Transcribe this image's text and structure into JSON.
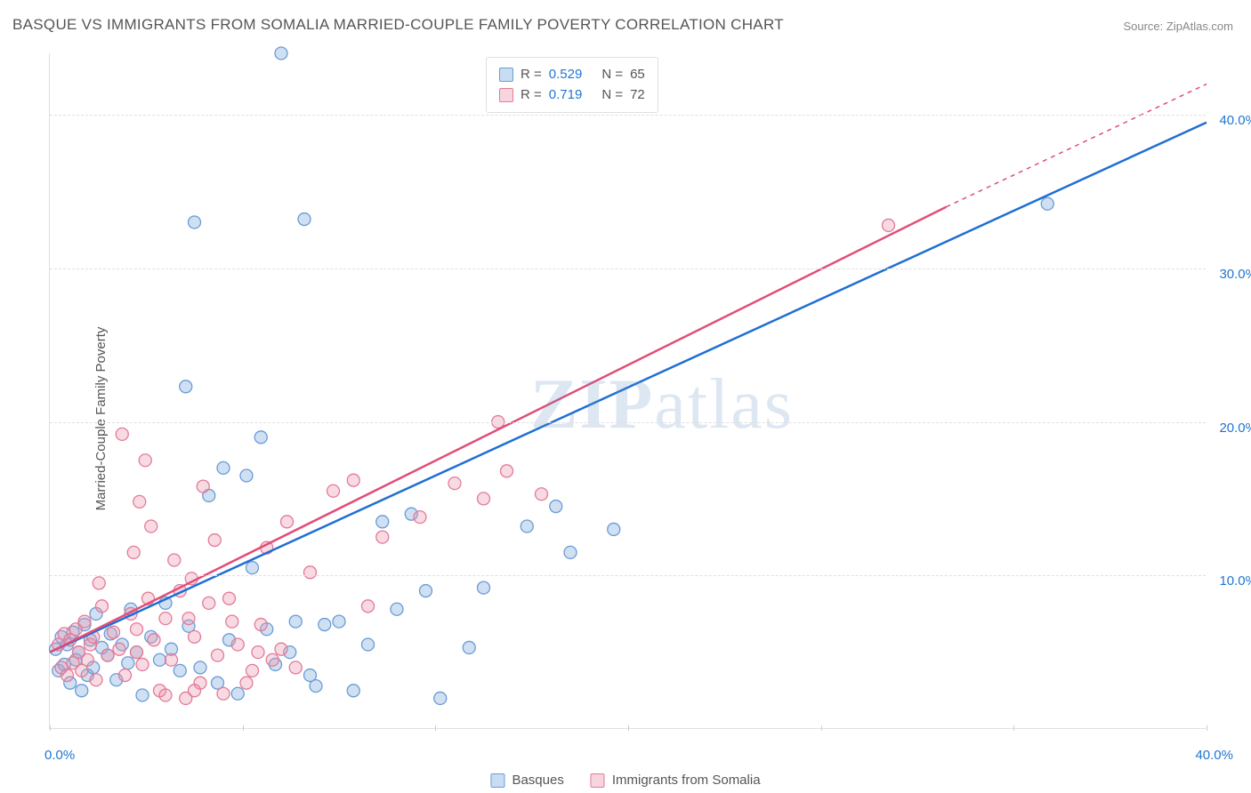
{
  "title": "BASQUE VS IMMIGRANTS FROM SOMALIA MARRIED-COUPLE FAMILY POVERTY CORRELATION CHART",
  "source_prefix": "Source: ",
  "source_name": "ZipAtlas.com",
  "ylabel": "Married-Couple Family Poverty",
  "watermark_a": "ZIP",
  "watermark_b": "atlas",
  "chart": {
    "type": "scatter",
    "xlim": [
      0,
      40
    ],
    "ylim": [
      0,
      44
    ],
    "xtick_positions": [
      0,
      6.67,
      13.33,
      20,
      26.67,
      33.33,
      40
    ],
    "ytick_positions": [
      10,
      20,
      30,
      40
    ],
    "ytick_labels": [
      "10.0%",
      "20.0%",
      "30.0%",
      "40.0%"
    ],
    "x_zero_label": "0.0%",
    "x_max_label": "40.0%",
    "background_color": "#ffffff",
    "grid_color": "#e0e0e0",
    "marker_radius": 7,
    "marker_stroke_width": 1.3,
    "series": [
      {
        "name": "Basques",
        "color_fill": "rgba(118,166,219,0.35)",
        "color_stroke": "#6a9bd6",
        "swatch_fill": "#c9ddf2",
        "swatch_border": "#6a9bd6",
        "R": "0.529",
        "N": "65",
        "regression": {
          "x1": 0,
          "y1": 5.0,
          "x2": 40,
          "y2": 39.5,
          "color": "#1f6fd4",
          "width": 2.5
        },
        "points": [
          [
            0.2,
            5.2
          ],
          [
            0.3,
            3.8
          ],
          [
            0.4,
            6.0
          ],
          [
            0.5,
            4.2
          ],
          [
            0.6,
            5.5
          ],
          [
            0.7,
            3.0
          ],
          [
            0.8,
            6.3
          ],
          [
            0.9,
            4.5
          ],
          [
            1.0,
            5.0
          ],
          [
            1.1,
            2.5
          ],
          [
            1.2,
            6.8
          ],
          [
            1.3,
            3.5
          ],
          [
            1.4,
            5.8
          ],
          [
            1.5,
            4.0
          ],
          [
            1.6,
            7.5
          ],
          [
            1.8,
            5.3
          ],
          [
            2.0,
            4.8
          ],
          [
            2.1,
            6.2
          ],
          [
            2.3,
            3.2
          ],
          [
            2.5,
            5.5
          ],
          [
            2.7,
            4.3
          ],
          [
            2.8,
            7.8
          ],
          [
            3.0,
            5.0
          ],
          [
            3.2,
            2.2
          ],
          [
            3.5,
            6.0
          ],
          [
            3.8,
            4.5
          ],
          [
            4.0,
            8.2
          ],
          [
            4.2,
            5.2
          ],
          [
            4.5,
            3.8
          ],
          [
            4.7,
            22.3
          ],
          [
            4.8,
            6.7
          ],
          [
            5.0,
            33.0
          ],
          [
            5.2,
            4.0
          ],
          [
            5.5,
            15.2
          ],
          [
            5.8,
            3.0
          ],
          [
            6.0,
            17.0
          ],
          [
            6.2,
            5.8
          ],
          [
            6.5,
            2.3
          ],
          [
            7.0,
            10.5
          ],
          [
            7.3,
            19.0
          ],
          [
            7.5,
            6.5
          ],
          [
            7.8,
            4.2
          ],
          [
            8.0,
            44.0
          ],
          [
            8.3,
            5.0
          ],
          [
            8.5,
            7.0
          ],
          [
            9.0,
            3.5
          ],
          [
            9.5,
            6.8
          ],
          [
            10.0,
            7.0
          ],
          [
            10.5,
            2.5
          ],
          [
            11.0,
            5.5
          ],
          [
            11.5,
            13.5
          ],
          [
            12.0,
            7.8
          ],
          [
            12.5,
            14.0
          ],
          [
            13.0,
            9.0
          ],
          [
            13.5,
            2.0
          ],
          [
            14.5,
            5.3
          ],
          [
            15.0,
            9.2
          ],
          [
            8.8,
            33.2
          ],
          [
            16.5,
            13.2
          ],
          [
            17.5,
            14.5
          ],
          [
            18.0,
            11.5
          ],
          [
            19.5,
            13.0
          ],
          [
            9.2,
            2.8
          ],
          [
            34.5,
            34.2
          ],
          [
            6.8,
            16.5
          ]
        ]
      },
      {
        "name": "Immigrants from Somalia",
        "color_fill": "rgba(236,150,173,0.35)",
        "color_stroke": "#e47a99",
        "swatch_fill": "#f7d4de",
        "swatch_border": "#e47a99",
        "R": "0.719",
        "N": "72",
        "regression": {
          "x1": 0,
          "y1": 5.0,
          "x2": 31,
          "y2": 34.0,
          "dash_to_x": 40,
          "dash_to_y": 42.0,
          "color": "#e14e78",
          "width": 2.5
        },
        "points": [
          [
            0.3,
            5.5
          ],
          [
            0.4,
            4.0
          ],
          [
            0.5,
            6.2
          ],
          [
            0.6,
            3.5
          ],
          [
            0.7,
            5.8
          ],
          [
            0.8,
            4.3
          ],
          [
            0.9,
            6.5
          ],
          [
            1.0,
            5.0
          ],
          [
            1.1,
            3.8
          ],
          [
            1.2,
            7.0
          ],
          [
            1.3,
            4.5
          ],
          [
            1.4,
            5.5
          ],
          [
            1.5,
            6.0
          ],
          [
            1.6,
            3.2
          ],
          [
            1.8,
            8.0
          ],
          [
            2.0,
            4.8
          ],
          [
            2.2,
            6.3
          ],
          [
            2.4,
            5.2
          ],
          [
            2.6,
            3.5
          ],
          [
            2.8,
            7.5
          ],
          [
            3.0,
            5.0
          ],
          [
            3.2,
            4.2
          ],
          [
            3.4,
            8.5
          ],
          [
            3.6,
            5.8
          ],
          [
            3.8,
            2.5
          ],
          [
            4.0,
            7.2
          ],
          [
            4.2,
            4.5
          ],
          [
            4.5,
            9.0
          ],
          [
            4.7,
            2.0
          ],
          [
            5.0,
            6.0
          ],
          [
            5.2,
            3.0
          ],
          [
            5.5,
            8.2
          ],
          [
            5.8,
            4.8
          ],
          [
            6.0,
            2.3
          ],
          [
            6.3,
            7.0
          ],
          [
            6.5,
            5.5
          ],
          [
            7.0,
            3.8
          ],
          [
            7.3,
            6.8
          ],
          [
            7.7,
            4.5
          ],
          [
            8.0,
            5.2
          ],
          [
            1.7,
            9.5
          ],
          [
            2.5,
            19.2
          ],
          [
            2.9,
            11.5
          ],
          [
            3.1,
            14.8
          ],
          [
            3.5,
            13.2
          ],
          [
            3.3,
            17.5
          ],
          [
            4.3,
            11.0
          ],
          [
            4.9,
            9.8
          ],
          [
            5.3,
            15.8
          ],
          [
            5.7,
            12.3
          ],
          [
            6.2,
            8.5
          ],
          [
            7.5,
            11.8
          ],
          [
            8.2,
            13.5
          ],
          [
            9.0,
            10.2
          ],
          [
            9.8,
            15.5
          ],
          [
            10.5,
            16.2
          ],
          [
            11.0,
            8.0
          ],
          [
            11.5,
            12.5
          ],
          [
            12.8,
            13.8
          ],
          [
            14.0,
            16.0
          ],
          [
            15.0,
            15.0
          ],
          [
            15.8,
            16.8
          ],
          [
            15.5,
            20.0
          ],
          [
            17.0,
            15.3
          ],
          [
            29.0,
            32.8
          ],
          [
            4.0,
            2.2
          ],
          [
            5.0,
            2.5
          ],
          [
            6.8,
            3.0
          ],
          [
            7.2,
            5.0
          ],
          [
            8.5,
            4.0
          ],
          [
            3.0,
            6.5
          ],
          [
            4.8,
            7.2
          ]
        ]
      }
    ]
  },
  "top_legend": {
    "r_label": "R =",
    "n_label": "N ="
  },
  "bottom_legend_labels": [
    "Basques",
    "Immigrants from Somalia"
  ]
}
